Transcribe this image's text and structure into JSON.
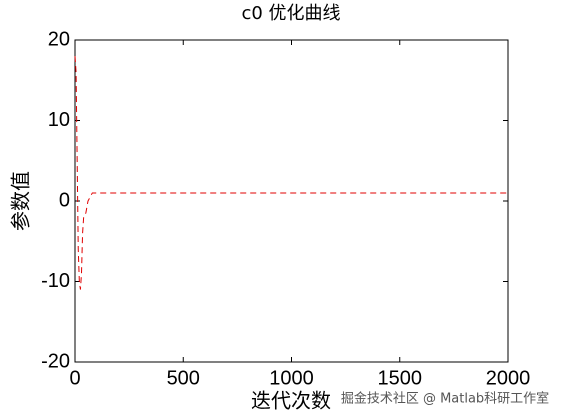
{
  "chart_data": {
    "type": "line",
    "title": "c0 优化曲线",
    "x_label": "迭代次数",
    "y_label": "参数值",
    "x": [
      0,
      5,
      10,
      15,
      20,
      25,
      30,
      35,
      40,
      50,
      60,
      70,
      80,
      2000
    ],
    "series": [
      {
        "color": "#e00000",
        "values": [
          18,
          16,
          5,
          -6,
          -10,
          -11,
          -9,
          -4,
          -2,
          -1.5,
          0,
          0.5,
          1,
          1
        ]
      }
    ],
    "xlim": [
      0,
      2000
    ],
    "xticks": [
      0,
      500,
      1000,
      1500,
      2000
    ],
    "ylim": [
      -20,
      20
    ],
    "yticks": [
      -20,
      -10,
      0,
      10,
      20
    ],
    "annotation": "掘金技术社区 @ Matlab科研工作室"
  }
}
